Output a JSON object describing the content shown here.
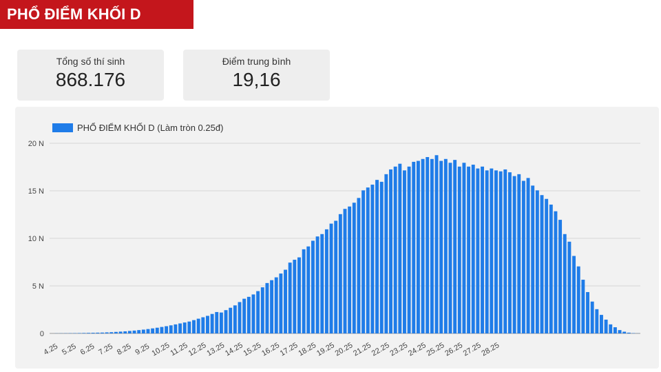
{
  "header": {
    "title": "PHỔ ĐIỂM KHỐI D"
  },
  "stats": [
    {
      "label": "Tổng số thí sinh",
      "value": "868.176"
    },
    {
      "label": "Điểm trung bình",
      "value": "19,16"
    }
  ],
  "colors": {
    "brand_red": "#c4161c",
    "bar_blue": "#1f7ce8",
    "panel_bg": "#f2f2f2",
    "card_bg": "#eeeeee"
  },
  "chart_data": {
    "type": "bar",
    "legend": {
      "label": "PHỔ ĐIỂM KHỐI D (Làm tròn 0.25đ)",
      "position": "top-left"
    },
    "grid": true,
    "y_ticks": [
      {
        "value": 0,
        "label": "0"
      },
      {
        "value": 5000,
        "label": "5 N"
      },
      {
        "value": 10000,
        "label": "10 N"
      },
      {
        "value": 15000,
        "label": "15 N"
      },
      {
        "value": 20000,
        "label": "20 N"
      }
    ],
    "ylim": [
      0,
      20000
    ],
    "x_tick_labels": [
      "4.25",
      "5.25",
      "6.25",
      "7.25",
      "8.25",
      "9.25",
      "10.25",
      "11.25",
      "12.25",
      "13.25",
      "14.25",
      "15.25",
      "16.25",
      "17.25",
      "18.25",
      "19.25",
      "20.25",
      "21.25",
      "22.25",
      "23.25",
      "24.25",
      "25.25",
      "26.25",
      "27.25",
      "28.25"
    ],
    "x_start": 4.25,
    "x_step": 0.25,
    "values": [
      0,
      10,
      15,
      20,
      25,
      30,
      40,
      50,
      60,
      70,
      80,
      90,
      110,
      130,
      160,
      190,
      220,
      260,
      300,
      350,
      400,
      460,
      530,
      600,
      680,
      760,
      850,
      950,
      1050,
      1150,
      1250,
      1400,
      1550,
      1700,
      1850,
      2050,
      2250,
      2200,
      2450,
      2700,
      2950,
      3300,
      3650,
      3850,
      4100,
      4450,
      4850,
      5300,
      5600,
      5900,
      6300,
      6700,
      7450,
      7750,
      8000,
      8850,
      9150,
      9750,
      10200,
      10450,
      10950,
      11550,
      11850,
      12550,
      13100,
      13350,
      13750,
      14250,
      15050,
      15350,
      15650,
      16150,
      15950,
      16750,
      17250,
      17550,
      17850,
      17150,
      17550,
      18050,
      18150,
      18350,
      18550,
      18350,
      18750,
      18150,
      18350,
      17950,
      18250,
      17550,
      17950,
      17550,
      17750,
      17350,
      17550,
      17150,
      17350,
      17150,
      17050,
      17250,
      16950,
      16550,
      16750,
      16050,
      16350,
      15550,
      15050,
      14550,
      14150,
      13550,
      12850,
      11950,
      10450,
      9650,
      8150,
      7050,
      5650,
      4350,
      3350,
      2550,
      1950,
      1450,
      950,
      650,
      350,
      180,
      80,
      30,
      10
    ]
  }
}
